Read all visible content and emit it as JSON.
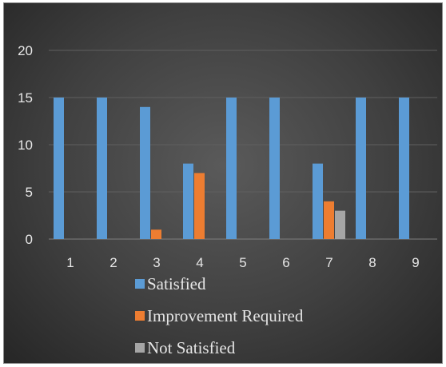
{
  "chart_data": {
    "type": "bar",
    "categories": [
      "1",
      "2",
      "3",
      "4",
      "5",
      "6",
      "7",
      "8",
      "9"
    ],
    "series": [
      {
        "name": "Satisfied",
        "values": [
          15,
          15,
          14,
          8,
          15,
          15,
          8,
          15,
          15
        ],
        "color": "#5b9bd5"
      },
      {
        "name": "Improvement Required",
        "values": [
          0,
          0,
          1,
          7,
          0,
          0,
          4,
          0,
          0
        ],
        "color": "#ed7d31"
      },
      {
        "name": "Not Satisfied",
        "values": [
          0,
          0,
          0,
          0,
          0,
          0,
          3,
          0,
          0
        ],
        "color": "#a5a5a5"
      }
    ],
    "y_ticks": [
      0,
      5,
      10,
      15,
      20
    ],
    "ylim": [
      0,
      20
    ],
    "grid": true,
    "legend_position": "bottom"
  }
}
